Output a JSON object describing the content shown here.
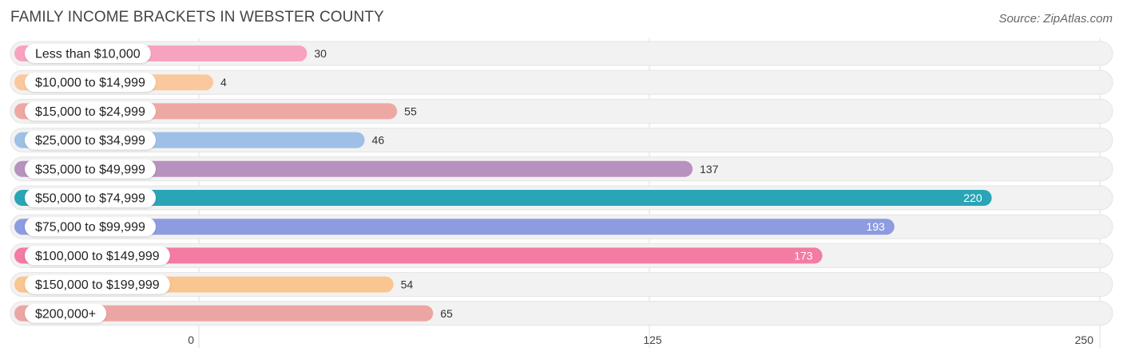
{
  "header": {
    "title": "FAMILY INCOME BRACKETS IN WEBSTER COUNTY",
    "source": "Source: ZipAtlas.com"
  },
  "chart_data": {
    "type": "bar",
    "orientation": "horizontal",
    "categories": [
      "Less than $10,000",
      "$10,000 to $14,999",
      "$15,000 to $24,999",
      "$25,000 to $34,999",
      "$35,000 to $49,999",
      "$50,000 to $74,999",
      "$75,000 to $99,999",
      "$100,000 to $149,999",
      "$150,000 to $199,999",
      "$200,000+"
    ],
    "values": [
      30,
      4,
      55,
      46,
      137,
      220,
      193,
      173,
      54,
      65
    ],
    "colors": [
      "#f7a3c0",
      "#f9c99d",
      "#eea8a4",
      "#9fc0e6",
      "#b892be",
      "#2aa5b5",
      "#8d9be0",
      "#f47ba1",
      "#f9c591",
      "#eba6a3"
    ],
    "xlim": [
      0,
      250
    ],
    "xticks": [
      0,
      125,
      250
    ],
    "grid": true
  }
}
